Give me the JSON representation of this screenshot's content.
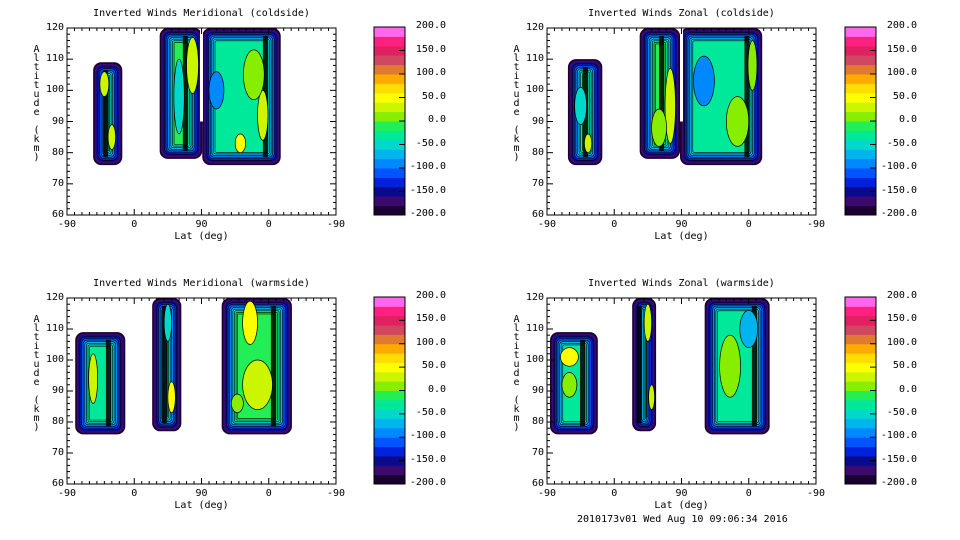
{
  "chart_data": [
    {
      "type": "contour",
      "title": "Inverted Winds Meridional (coldside)",
      "xlabel": "Lat (deg)",
      "ylabel": "Altitude (km)",
      "xticks": [
        "-90",
        "0",
        "90",
        "0",
        "-90"
      ],
      "yticks": [
        "60",
        "70",
        "80",
        "90",
        "100",
        "110",
        "120"
      ],
      "ylim": [
        60,
        120
      ],
      "x_track_note": "track position 0-360 maps -90..0..90..0..-90 lat",
      "regions": [
        {
          "track": [
            35,
            74
          ],
          "alt": [
            76,
            109
          ],
          "value": -30
        },
        {
          "track": [
            124,
            181
          ],
          "alt": [
            78,
            120
          ],
          "value": -20
        },
        {
          "track": [
            181,
            286
          ],
          "alt": [
            76,
            120
          ],
          "value": -40
        }
      ],
      "patches": [
        {
          "track": 50,
          "alt": 102,
          "rt": 6,
          "ra": 4,
          "value": 30
        },
        {
          "track": 60,
          "alt": 85,
          "rt": 5,
          "ra": 4,
          "value": 30
        },
        {
          "track": 168,
          "alt": 108,
          "rt": 8,
          "ra": 9,
          "value": 20
        },
        {
          "track": 150,
          "alt": 98,
          "rt": 7,
          "ra": 12,
          "value": -50
        },
        {
          "track": 200,
          "alt": 100,
          "rt": 10,
          "ra": 6,
          "value": -90
        },
        {
          "track": 262,
          "alt": 92,
          "rt": 7,
          "ra": 8,
          "value": 20
        },
        {
          "track": 232,
          "alt": 83,
          "rt": 7,
          "ra": 3,
          "value": 40
        },
        {
          "track": 250,
          "alt": 105,
          "rt": 14,
          "ra": 8,
          "value": 0
        }
      ]
    },
    {
      "type": "contour",
      "title": "Inverted Winds Zonal (coldside)",
      "xlabel": "Lat (deg)",
      "ylabel": "Altitude (km)",
      "xticks": [
        "-90",
        "0",
        "90",
        "0",
        "-90"
      ],
      "yticks": [
        "60",
        "70",
        "80",
        "90",
        "100",
        "110",
        "120"
      ],
      "ylim": [
        60,
        120
      ],
      "regions": [
        {
          "track": [
            28,
            74
          ],
          "alt": [
            76,
            110
          ],
          "value": -20
        },
        {
          "track": [
            124,
            178
          ],
          "alt": [
            78,
            120
          ],
          "value": -10
        },
        {
          "track": [
            178,
            288
          ],
          "alt": [
            76,
            120
          ],
          "value": -40
        }
      ],
      "patches": [
        {
          "track": 45,
          "alt": 95,
          "rt": 8,
          "ra": 6,
          "value": -60
        },
        {
          "track": 55,
          "alt": 83,
          "rt": 5,
          "ra": 3,
          "value": 30
        },
        {
          "track": 165,
          "alt": 95,
          "rt": 7,
          "ra": 12,
          "value": 30
        },
        {
          "track": 150,
          "alt": 88,
          "rt": 10,
          "ra": 6,
          "value": 0
        },
        {
          "track": 210,
          "alt": 103,
          "rt": 14,
          "ra": 8,
          "value": -100
        },
        {
          "track": 255,
          "alt": 90,
          "rt": 15,
          "ra": 8,
          "value": 0
        },
        {
          "track": 275,
          "alt": 108,
          "rt": 6,
          "ra": 8,
          "value": 10
        }
      ]
    },
    {
      "type": "contour",
      "title": "Inverted Winds Meridional (warmside)",
      "xlabel": "Lat (deg)",
      "ylabel": "Altitude (km)",
      "xticks": [
        "-90",
        "0",
        "90",
        "0",
        "-90"
      ],
      "yticks": [
        "60",
        "70",
        "80",
        "90",
        "100",
        "110",
        "120"
      ],
      "ylim": [
        60,
        120
      ],
      "regions": [
        {
          "track": [
            11,
            78
          ],
          "alt": [
            76,
            109
          ],
          "value": -30
        },
        {
          "track": [
            114,
            153
          ],
          "alt": [
            77,
            120
          ],
          "value": -30
        },
        {
          "track": [
            207,
            301
          ],
          "alt": [
            76,
            120
          ],
          "value": -10
        }
      ],
      "patches": [
        {
          "track": 35,
          "alt": 94,
          "rt": 6,
          "ra": 8,
          "value": 30
        },
        {
          "track": 140,
          "alt": 88,
          "rt": 5,
          "ra": 5,
          "value": 40
        },
        {
          "track": 135,
          "alt": 112,
          "rt": 5,
          "ra": 6,
          "value": -60
        },
        {
          "track": 245,
          "alt": 112,
          "rt": 10,
          "ra": 7,
          "value": 40
        },
        {
          "track": 255,
          "alt": 92,
          "rt": 20,
          "ra": 8,
          "value": 20
        },
        {
          "track": 228,
          "alt": 86,
          "rt": 8,
          "ra": 3,
          "value": 0
        }
      ]
    },
    {
      "type": "contour",
      "title": "Inverted Winds Zonal (warmside)",
      "xlabel": "Lat (deg)",
      "ylabel": "Altitude (km)",
      "xticks": [
        "-90",
        "0",
        "90",
        "0",
        "-90"
      ],
      "yticks": [
        "60",
        "70",
        "80",
        "90",
        "100",
        "110",
        "120"
      ],
      "ylim": [
        60,
        120
      ],
      "regions": [
        {
          "track": [
            4,
            68
          ],
          "alt": [
            76,
            109
          ],
          "value": -40
        },
        {
          "track": [
            114,
            146
          ],
          "alt": [
            77,
            120
          ],
          "value": -20
        },
        {
          "track": [
            211,
            298
          ],
          "alt": [
            76,
            120
          ],
          "value": -40
        }
      ],
      "patches": [
        {
          "track": 30,
          "alt": 101,
          "rt": 12,
          "ra": 3,
          "value": 40
        },
        {
          "track": 30,
          "alt": 92,
          "rt": 10,
          "ra": 4,
          "value": 0
        },
        {
          "track": 135,
          "alt": 112,
          "rt": 5,
          "ra": 6,
          "value": 30
        },
        {
          "track": 140,
          "alt": 88,
          "rt": 4,
          "ra": 4,
          "value": 20
        },
        {
          "track": 245,
          "alt": 98,
          "rt": 14,
          "ra": 10,
          "value": 0
        },
        {
          "track": 270,
          "alt": 110,
          "rt": 12,
          "ra": 6,
          "value": -80
        }
      ]
    }
  ],
  "colorbar": {
    "labels": [
      "200.0",
      "150.0",
      "100.0",
      "50.0",
      "0.0",
      "-50.0",
      "-100.0",
      "-150.0",
      "-200.0"
    ],
    "range": [
      -200,
      200
    ],
    "colors": [
      "#1a0030",
      "#3c0a6e",
      "#0a0a8c",
      "#0022dd",
      "#0055ff",
      "#0088ff",
      "#00b4ee",
      "#00d8cc",
      "#00e899",
      "#22ee55",
      "#88ee00",
      "#ccf500",
      "#ffff00",
      "#ffdd00",
      "#ffaa00",
      "#e07a30",
      "#d04860",
      "#e02060",
      "#ff2080",
      "#ff66ee"
    ]
  },
  "footer": "2010173v01 Wed Aug 10 09:06:34 2016"
}
